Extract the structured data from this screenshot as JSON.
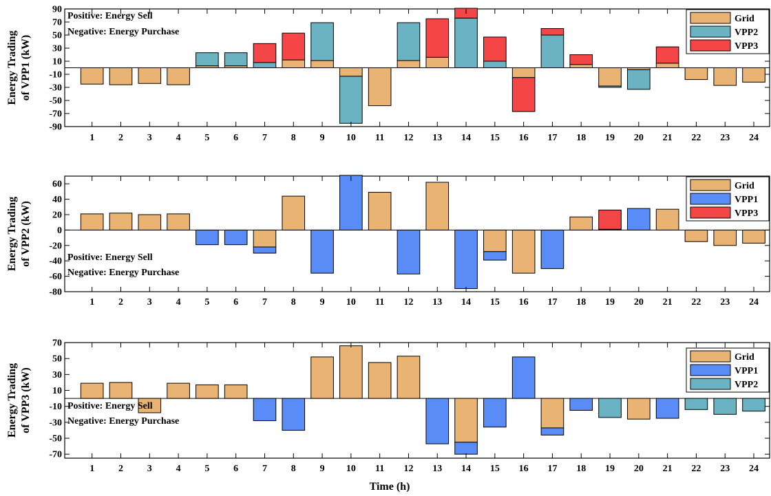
{
  "colors": {
    "Grid": "#E9B374",
    "VPP1": "#5A8CF7",
    "VPP2": "#6BB3C3",
    "VPP3": "#F44646"
  },
  "chart_data": [
    {
      "type": "bar",
      "stacked": true,
      "ylabel": [
        "Energy Trading",
        "of VPP1 (kW)"
      ],
      "xlabel": "",
      "ylim": [
        -90,
        90
      ],
      "yticks": [
        -90,
        -70,
        -50,
        -30,
        -10,
        10,
        30,
        50,
        70,
        90
      ],
      "yticklabels": [
        "-90",
        "-70",
        "-50",
        "-30",
        "-10",
        "10",
        "30",
        "50",
        "70",
        "90"
      ],
      "categories": [
        "1",
        "2",
        "3",
        "4",
        "5",
        "6",
        "7",
        "8",
        "9",
        "10",
        "11",
        "12",
        "13",
        "14",
        "15",
        "16",
        "17",
        "18",
        "19",
        "20",
        "21",
        "22",
        "23",
        "24"
      ],
      "annotations": [
        "Positive: Energy Sell",
        "Negative: Energy Purchase"
      ],
      "annotation_position": "top-left",
      "legend_position": "top-right",
      "series": [
        {
          "name": "Grid",
          "values": [
            -25,
            -26,
            -24,
            -26,
            3,
            3,
            0,
            12,
            11,
            -13,
            -58,
            11,
            16,
            0,
            0,
            -15,
            0,
            5,
            -28,
            -3,
            7,
            -18,
            -27,
            -22
          ]
        },
        {
          "name": "VPP2",
          "values": [
            0,
            0,
            0,
            0,
            20,
            20,
            8,
            0,
            58,
            -72,
            0,
            58,
            0,
            76,
            10,
            0,
            50,
            0,
            -2,
            -30,
            0,
            0,
            0,
            0
          ]
        },
        {
          "name": "VPP3",
          "values": [
            0,
            0,
            0,
            0,
            0,
            0,
            29,
            41,
            0,
            0,
            0,
            0,
            59,
            15,
            37,
            -52,
            10,
            15,
            0,
            0,
            25,
            0,
            0,
            0
          ]
        }
      ]
    },
    {
      "type": "bar",
      "stacked": true,
      "ylabel": [
        "Energy Trading",
        "of VPP2 (kW)"
      ],
      "xlabel": "",
      "ylim": [
        -80,
        70
      ],
      "yticks": [
        -80,
        -60,
        -40,
        -20,
        0,
        20,
        40,
        60
      ],
      "yticklabels": [
        "-80",
        "-60",
        "-40",
        "-20",
        "0",
        "20",
        "40",
        "60"
      ],
      "categories": [
        "1",
        "2",
        "3",
        "4",
        "5",
        "6",
        "7",
        "8",
        "9",
        "10",
        "11",
        "12",
        "13",
        "14",
        "15",
        "16",
        "17",
        "18",
        "19",
        "20",
        "21",
        "22",
        "23",
        "24"
      ],
      "annotations": [
        "Positive: Energy Sell",
        "Negative: Energy Purchase"
      ],
      "annotation_position": "bottom-left",
      "legend_position": "top-right",
      "series": [
        {
          "name": "Grid",
          "values": [
            21,
            22,
            20,
            21,
            0,
            0,
            -22,
            44,
            0,
            0,
            49,
            0,
            62,
            0,
            -28,
            -56,
            0,
            17,
            0,
            0,
            27,
            -15,
            -20,
            -17
          ]
        },
        {
          "name": "VPP1",
          "values": [
            0,
            0,
            0,
            0,
            -19,
            -19,
            -8,
            0,
            -56,
            71,
            0,
            -57,
            0,
            -76,
            -11,
            0,
            -50,
            0,
            1,
            28,
            0,
            0,
            0,
            0
          ]
        },
        {
          "name": "VPP3",
          "values": [
            0,
            0,
            0,
            0,
            0,
            0,
            0,
            0,
            0,
            0,
            0,
            0,
            0,
            0,
            0,
            0,
            0,
            0,
            25,
            0,
            0,
            0,
            0,
            0
          ]
        }
      ]
    },
    {
      "type": "bar",
      "stacked": true,
      "ylabel": [
        "Energy Trading",
        "of VPP3 (kW)"
      ],
      "xlabel": "Time (h)",
      "ylim": [
        -75,
        70
      ],
      "yticks": [
        -70,
        -50,
        -30,
        -10,
        10,
        30,
        50,
        70
      ],
      "yticklabels": [
        "-70",
        "-50",
        "-30",
        "-10",
        "10",
        "30",
        "50",
        "70"
      ],
      "categories": [
        "1",
        "2",
        "3",
        "4",
        "5",
        "6",
        "7",
        "8",
        "9",
        "10",
        "11",
        "12",
        "13",
        "14",
        "15",
        "16",
        "17",
        "18",
        "19",
        "20",
        "21",
        "22",
        "23",
        "24"
      ],
      "annotations": [
        "Positive: Energy Sell",
        "Negative: Energy Purchase"
      ],
      "annotation_position": "bottom-left",
      "legend_position": "top-right",
      "series": [
        {
          "name": "Grid",
          "values": [
            19,
            20,
            -18,
            19,
            17,
            17,
            0,
            0,
            52,
            66,
            45,
            53,
            0,
            -55,
            0,
            0,
            -37,
            0,
            0,
            -26,
            0,
            0,
            0,
            0
          ]
        },
        {
          "name": "VPP1",
          "values": [
            0,
            0,
            0,
            0,
            0,
            0,
            -28,
            -40,
            0,
            0,
            0,
            0,
            -57,
            -15,
            -36,
            52,
            -9,
            -15,
            0,
            0,
            -25,
            0,
            0,
            0
          ]
        },
        {
          "name": "VPP2",
          "values": [
            0,
            0,
            0,
            0,
            0,
            0,
            0,
            0,
            0,
            0,
            0,
            0,
            0,
            0,
            0,
            0,
            0,
            0,
            -24,
            0,
            0,
            -14,
            -20,
            -16
          ]
        }
      ]
    }
  ]
}
